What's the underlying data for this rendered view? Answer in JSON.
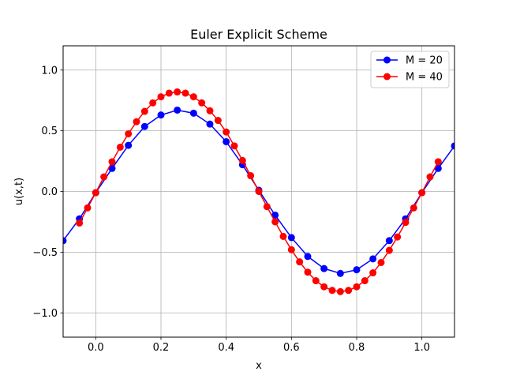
{
  "chart_data": {
    "type": "line",
    "title": "Euler Explicit Scheme",
    "xlabel": "x",
    "ylabel": "u(x,t)",
    "xlim": [
      -0.1,
      1.1
    ],
    "ylim": [
      -1.2,
      1.2
    ],
    "grid": true,
    "legend_position": "top-right",
    "x_ticks": [
      0.0,
      0.2,
      0.4,
      0.6,
      0.8,
      1.0
    ],
    "x_tick_labels": [
      "0.0",
      "0.2",
      "0.4",
      "0.6",
      "0.8",
      "1.0"
    ],
    "y_ticks": [
      -1.0,
      -0.5,
      0.0,
      0.5,
      1.0
    ],
    "y_tick_labels": [
      "−1.0",
      "−0.5",
      "0.0",
      "0.5",
      "1.0"
    ],
    "series": [
      {
        "name": "M = 20",
        "color": "#0000ff",
        "x": [
          -0.1,
          -0.05,
          0.0,
          0.05,
          0.1,
          0.15,
          0.2,
          0.25,
          0.3,
          0.35,
          0.4,
          0.45,
          0.5,
          0.55,
          0.6,
          0.65,
          0.7,
          0.75,
          0.8,
          0.85,
          0.9,
          0.95,
          1.0,
          1.05,
          1.1
        ],
        "y": [
          -0.405,
          -0.225,
          -0.01,
          0.19,
          0.38,
          0.535,
          0.63,
          0.67,
          0.645,
          0.555,
          0.41,
          0.22,
          0.01,
          -0.195,
          -0.38,
          -0.535,
          -0.635,
          -0.675,
          -0.645,
          -0.555,
          -0.405,
          -0.225,
          -0.01,
          0.19,
          0.375
        ]
      },
      {
        "name": "M = 40",
        "color": "#ff0000",
        "x": [
          -0.05,
          -0.025,
          0.0,
          0.025,
          0.05,
          0.075,
          0.1,
          0.125,
          0.15,
          0.175,
          0.2,
          0.225,
          0.25,
          0.275,
          0.3,
          0.325,
          0.35,
          0.375,
          0.4,
          0.425,
          0.45,
          0.475,
          0.5,
          0.525,
          0.55,
          0.575,
          0.6,
          0.625,
          0.65,
          0.675,
          0.7,
          0.725,
          0.75,
          0.775,
          0.8,
          0.825,
          0.85,
          0.875,
          0.9,
          0.925,
          0.95,
          0.975,
          1.0,
          1.025,
          1.05
        ],
        "y": [
          -0.26,
          -0.135,
          -0.01,
          0.12,
          0.245,
          0.365,
          0.475,
          0.575,
          0.66,
          0.73,
          0.78,
          0.81,
          0.82,
          0.81,
          0.78,
          0.73,
          0.665,
          0.585,
          0.49,
          0.375,
          0.255,
          0.13,
          0.0,
          -0.125,
          -0.25,
          -0.37,
          -0.48,
          -0.58,
          -0.665,
          -0.735,
          -0.785,
          -0.815,
          -0.825,
          -0.815,
          -0.785,
          -0.735,
          -0.67,
          -0.585,
          -0.485,
          -0.375,
          -0.255,
          -0.135,
          -0.01,
          0.12,
          0.245
        ]
      }
    ]
  }
}
